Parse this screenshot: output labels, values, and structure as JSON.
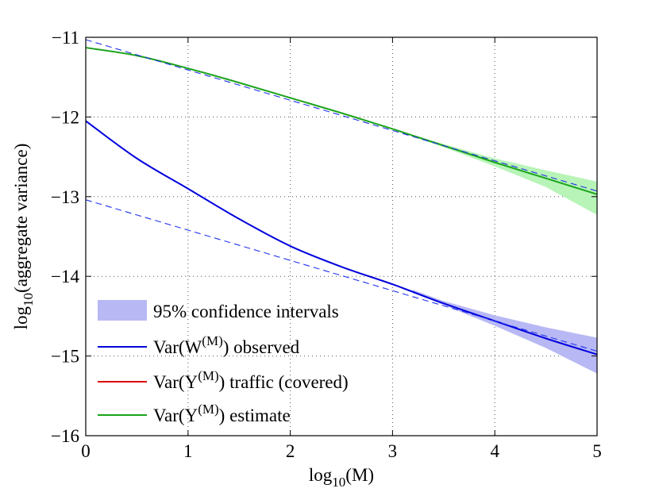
{
  "chart_data": {
    "type": "line",
    "title": "",
    "xlabel_base": "log",
    "xlabel_sub": "10",
    "xlabel_rest": "(M)",
    "ylabel_base": "log",
    "ylabel_sub": "10",
    "ylabel_rest": "(aggregate variance)",
    "xlim": [
      0,
      5
    ],
    "ylim": [
      -16,
      -11
    ],
    "xticks": [
      0,
      1,
      2,
      3,
      4,
      5
    ],
    "yticks": [
      -16,
      -15,
      -14,
      -13,
      -12,
      -11
    ],
    "xtick_labels": [
      "0",
      "1",
      "2",
      "3",
      "4",
      "5"
    ],
    "ytick_labels": [
      "−16",
      "−15",
      "−14",
      "−13",
      "−12",
      "−11"
    ],
    "grid": true,
    "legend_position": "bottom-left",
    "colors": {
      "observed": "#0000dd",
      "traffic": "#dd0000",
      "estimate": "#1aa31a",
      "ci_blue": "#b8b8f4",
      "ci_green": "#b8f4b8",
      "dashed": "#2233ee"
    },
    "series": [
      {
        "name": "estimate",
        "x": [
          0,
          0.5,
          1,
          1.5,
          2,
          2.5,
          3,
          3.5,
          4,
          4.5,
          5
        ],
        "y": [
          -11.13,
          -11.23,
          -11.39,
          -11.57,
          -11.76,
          -11.95,
          -12.15,
          -12.36,
          -12.57,
          -12.77,
          -12.97
        ]
      },
      {
        "name": "observed",
        "x": [
          0,
          0.5,
          1,
          1.5,
          2,
          2.5,
          3,
          3.5,
          4,
          4.5,
          5
        ],
        "y": [
          -12.05,
          -12.52,
          -12.9,
          -13.28,
          -13.62,
          -13.88,
          -14.1,
          -14.34,
          -14.56,
          -14.78,
          -14.98
        ]
      },
      {
        "name": "estimate_fit",
        "x": [
          0,
          5
        ],
        "y": [
          -11.03,
          -12.93
        ]
      },
      {
        "name": "observed_fit",
        "x": [
          0,
          5
        ],
        "y": [
          -13.04,
          -14.94
        ]
      }
    ],
    "confidence_bands": [
      {
        "name": "estimate_ci",
        "x": [
          3.2,
          3.5,
          4,
          4.5,
          5
        ],
        "lower": [
          -12.25,
          -12.38,
          -12.62,
          -12.88,
          -13.23
        ],
        "upper": [
          -12.23,
          -12.34,
          -12.52,
          -12.67,
          -12.81
        ]
      },
      {
        "name": "observed_ci",
        "x": [
          3.2,
          3.5,
          4,
          4.5,
          5
        ],
        "lower": [
          -14.21,
          -14.36,
          -14.62,
          -14.9,
          -15.22
        ],
        "upper": [
          -14.17,
          -14.31,
          -14.49,
          -14.64,
          -14.77
        ]
      }
    ],
    "legend": [
      {
        "key": "ci",
        "text": "95% confidence intervals"
      },
      {
        "key": "observed",
        "pre": "Var(W",
        "sup": "(M)",
        "post": ") observed"
      },
      {
        "key": "traffic",
        "pre": "Var(Y",
        "sup": "(M)",
        "post": ") traffic (covered)"
      },
      {
        "key": "estimate",
        "pre": "Var(Y",
        "sup": "(M)",
        "post": ") estimate"
      }
    ]
  }
}
